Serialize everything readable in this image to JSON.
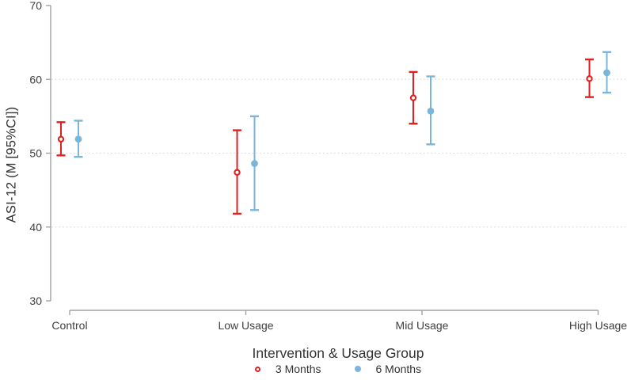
{
  "colors": {
    "background": "#ffffff",
    "axis": "#a3a3a3",
    "grid": "#d9d9d9",
    "tick_label": "#404040",
    "title_text": "#333333",
    "series_3_months": "#e32020",
    "series_6_months": "#7ab6dc"
  },
  "chart_data": {
    "type": "scatter",
    "subtype": "point-estimates-with-95pct-ci-error-bars",
    "title": "",
    "xlabel": "Intervention & Usage Group",
    "ylabel": "ASI-12 (M [95%CI])",
    "categories": [
      "Control",
      "Low Usage",
      "Mid Usage",
      "High Usage"
    ],
    "ylim": [
      30,
      70
    ],
    "yticks": [
      30,
      40,
      50,
      60,
      70
    ],
    "grid_yticks": [
      40,
      50,
      60
    ],
    "grid_style": "dotted-horizontal",
    "legend_position": "bottom-center",
    "series": [
      {
        "name": "3 Months",
        "color": "#e32020",
        "marker": "open-circle",
        "means": [
          51.9,
          47.4,
          57.5,
          60.1
        ],
        "ci_low": [
          49.7,
          41.8,
          54.0,
          57.6
        ],
        "ci_high": [
          54.2,
          53.1,
          61.0,
          62.7
        ]
      },
      {
        "name": "6 Months",
        "color": "#7ab6dc",
        "marker": "filled-circle",
        "means": [
          51.9,
          48.6,
          55.7,
          60.9
        ],
        "ci_low": [
          49.5,
          42.3,
          51.2,
          58.2
        ],
        "ci_high": [
          54.4,
          55.0,
          60.4,
          63.7
        ]
      }
    ]
  }
}
